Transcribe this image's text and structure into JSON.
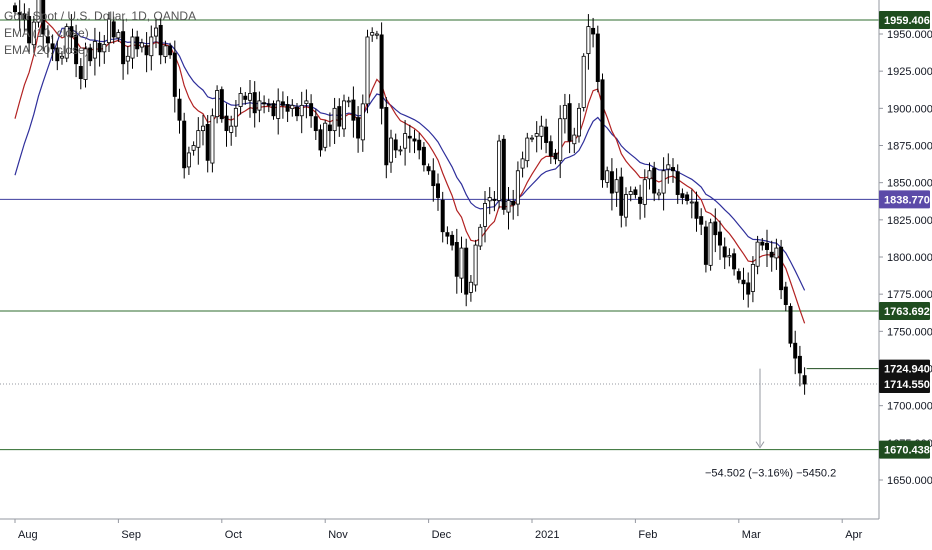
{
  "legend": {
    "symbol": "Gold Spot / U.S. Dollar, 1D, OANDA",
    "ema10": "EMA (10, close)",
    "ema20": "EMA (20, close)"
  },
  "colors": {
    "up": "#ffffff",
    "down": "#000000",
    "ema10": "#b22222",
    "ema20": "#2f2f9b",
    "level_green": "#2e6b2e",
    "level_purple": "#3d3d9e",
    "tag_green": "#1f4d1f",
    "tag_purple": "#5b4aa8",
    "tag_black": "#111111"
  },
  "measure": {
    "from": 1724.94,
    "to": 1670.438,
    "label": "−54.502 (−3.16%) −5450.2"
  },
  "chart_data": {
    "type": "candlestick",
    "title": "Gold Spot / U.S. Dollar, 1D, OANDA",
    "ylim": [
      1625,
      1975
    ],
    "y_ticks": [
      1650,
      1675,
      1700,
      1725,
      1750,
      1775,
      1800,
      1825,
      1850,
      1875,
      1900,
      1925,
      1950
    ],
    "y_tick_labels": [
      "1650.000",
      "1675.000",
      "1700.000",
      "1725.000",
      "1750.000",
      "1775.000",
      "1800.000",
      "1825.000",
      "1850.000",
      "1875.000",
      "1900.000",
      "1925.000",
      "1950.000"
    ],
    "x_labels": [
      "Aug",
      "Sep",
      "Oct",
      "Nov",
      "Dec",
      "2021",
      "Feb",
      "Mar",
      "Apr"
    ],
    "x_label_index": [
      0,
      22,
      44,
      66,
      88,
      110,
      132,
      154,
      176
    ],
    "horizontal_levels": [
      {
        "value": 1959.406,
        "label": "1959.406",
        "color": "green"
      },
      {
        "value": 1838.77,
        "label": "1838.770",
        "color": "purple"
      },
      {
        "value": 1763.692,
        "label": "1763.692",
        "color": "green"
      },
      {
        "value": 1724.94,
        "label": "1724.940",
        "color": "black-short"
      },
      {
        "value": 1714.55,
        "label": "1714.550",
        "color": "last"
      },
      {
        "value": 1670.438,
        "label": "1670.438",
        "color": "green"
      }
    ],
    "series": [
      {
        "name": "EMA (10, close)"
      },
      {
        "name": "EMA (20, close)"
      }
    ],
    "closes": [
      1965,
      1963,
      1960,
      1944,
      1958,
      1975,
      1950,
      1944,
      1940,
      1932,
      1935,
      1955,
      1948,
      1930,
      1920,
      1940,
      1932,
      1945,
      1938,
      1943,
      1960,
      1948,
      1951,
      1930,
      1935,
      1948,
      1940,
      1944,
      1936,
      1948,
      1954,
      1936,
      1942,
      1936,
      1908,
      1892,
      1860,
      1870,
      1875,
      1885,
      1888,
      1865,
      1895,
      1912,
      1893,
      1885,
      1888,
      1900,
      1910,
      1906,
      1910,
      1897,
      1905,
      1903,
      1902,
      1895,
      1905,
      1902,
      1898,
      1902,
      1895,
      1902,
      1905,
      1895,
      1885,
      1872,
      1890,
      1885,
      1900,
      1888,
      1905,
      1905,
      1892,
      1880,
      1903,
      1948,
      1951,
      1950,
      1900,
      1862,
      1880,
      1872,
      1872,
      1883,
      1880,
      1878,
      1872,
      1862,
      1858,
      1848,
      1840,
      1817,
      1814,
      1808,
      1787,
      1806,
      1775,
      1783,
      1808,
      1820,
      1836,
      1840,
      1838,
      1878,
      1832,
      1838,
      1835,
      1858,
      1866,
      1880,
      1880,
      1883,
      1888,
      1877,
      1868,
      1866,
      1893,
      1902,
      1878,
      1882,
      1900,
      1935,
      1955,
      1950,
      1918,
      1852,
      1858,
      1843,
      1852,
      1828,
      1842,
      1844,
      1842,
      1836,
      1852,
      1858,
      1843,
      1843,
      1858,
      1862,
      1858,
      1842,
      1840,
      1838,
      1837,
      1826,
      1822,
      1795,
      1823,
      1815,
      1808,
      1800,
      1801,
      1792,
      1785,
      1782,
      1775,
      1795,
      1810,
      1808,
      1805,
      1800,
      1806,
      1778,
      1768,
      1742,
      1732,
      1722,
      1714.55
    ],
    "last_price": 1714.55
  }
}
